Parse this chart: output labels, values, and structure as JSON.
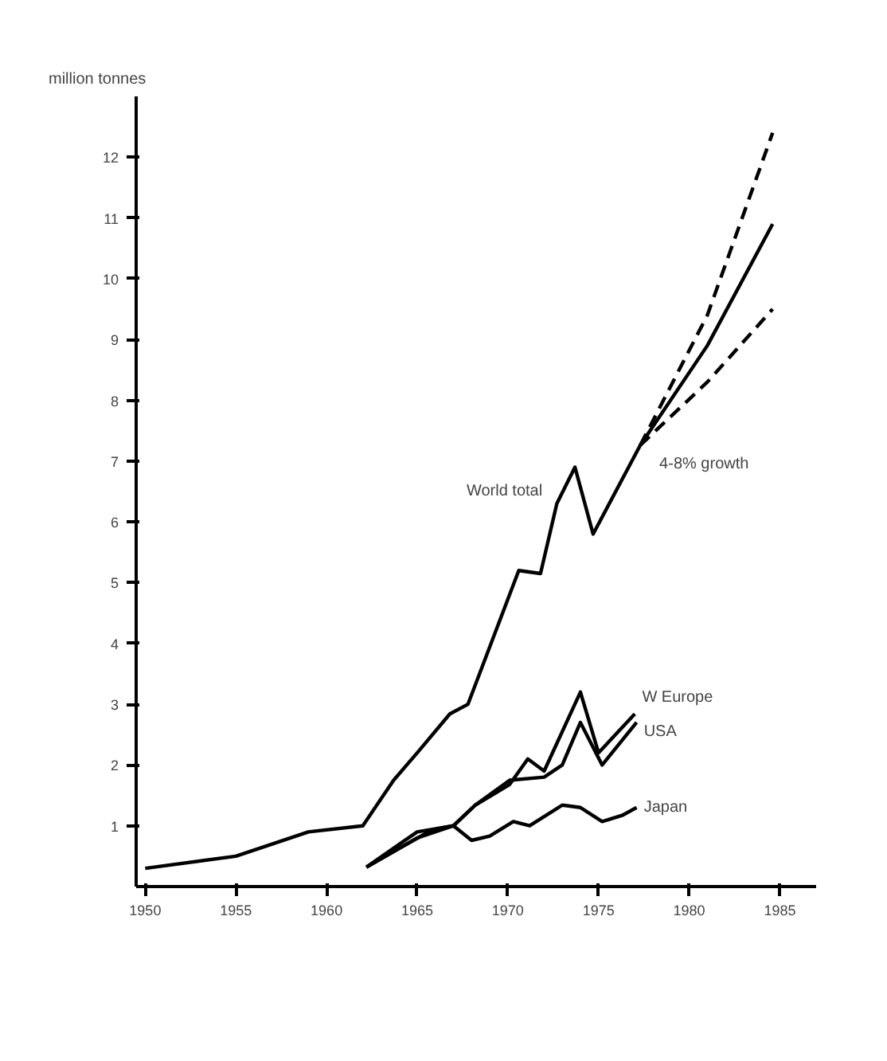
{
  "chart_data": {
    "type": "line",
    "ylabel": "million tonnes",
    "xlim": [
      1949.5,
      1987
    ],
    "ylim": [
      0,
      13
    ],
    "xticks": [
      1950,
      1955,
      1960,
      1965,
      1970,
      1975,
      1980,
      1985
    ],
    "yticks": [
      1,
      2,
      3,
      4,
      5,
      6,
      7,
      8,
      9,
      10,
      11,
      12
    ],
    "grid": false,
    "marker": "none",
    "series": [
      {
        "name": "World total",
        "color": "#000000",
        "x": [
          1950,
          1955,
          1959,
          1962,
          1963.7,
          1965,
          1966.8,
          1967.8,
          1970.6,
          1971.8,
          1972.7,
          1973.7,
          1974.7,
          1977.3,
          1981,
          1984.6
        ],
        "values": [
          0.3,
          0.5,
          0.9,
          1.0,
          1.75,
          2.2,
          2.84,
          3.0,
          5.2,
          5.15,
          6.3,
          6.9,
          5.8,
          7.26,
          8.9,
          10.9
        ]
      },
      {
        "name": "W Europe",
        "color": "#000000",
        "x": [
          1962.2,
          1965,
          1967,
          1968.2,
          1970.1,
          1971.1,
          1972,
          1974,
          1975,
          1977
        ],
        "values": [
          0.32,
          0.9,
          1.0,
          1.34,
          1.68,
          2.1,
          1.9,
          3.2,
          2.2,
          2.84
        ]
      },
      {
        "name": "USA",
        "color": "#000000",
        "x": [
          1962.2,
          1965,
          1967,
          1968.2,
          1970.1,
          1972,
          1973,
          1974,
          1975.2,
          1977.1
        ],
        "values": [
          0.32,
          0.8,
          1.0,
          1.34,
          1.75,
          1.8,
          2.0,
          2.7,
          2.0,
          2.7
        ]
      },
      {
        "name": "Japan",
        "color": "#000000",
        "x": [
          1962.2,
          1965.8,
          1967,
          1968,
          1969,
          1970.3,
          1971.2,
          1973,
          1974,
          1975.2,
          1976.3,
          1977.1
        ],
        "values": [
          0.32,
          0.93,
          1.0,
          0.76,
          0.83,
          1.07,
          1.0,
          1.34,
          1.3,
          1.07,
          1.17,
          1.3
        ]
      },
      {
        "color": "#000000",
        "line_style": "dashed",
        "x": [
          1977.3,
          1981,
          1984.6
        ],
        "values": [
          7.26,
          9.4,
          12.4
        ]
      },
      {
        "color": "#000000",
        "line_style": "dashed",
        "x": [
          1977.3,
          1981,
          1984.6
        ],
        "values": [
          7.26,
          8.3,
          9.5
        ]
      }
    ],
    "annotations": [
      "4-8% growth"
    ]
  }
}
